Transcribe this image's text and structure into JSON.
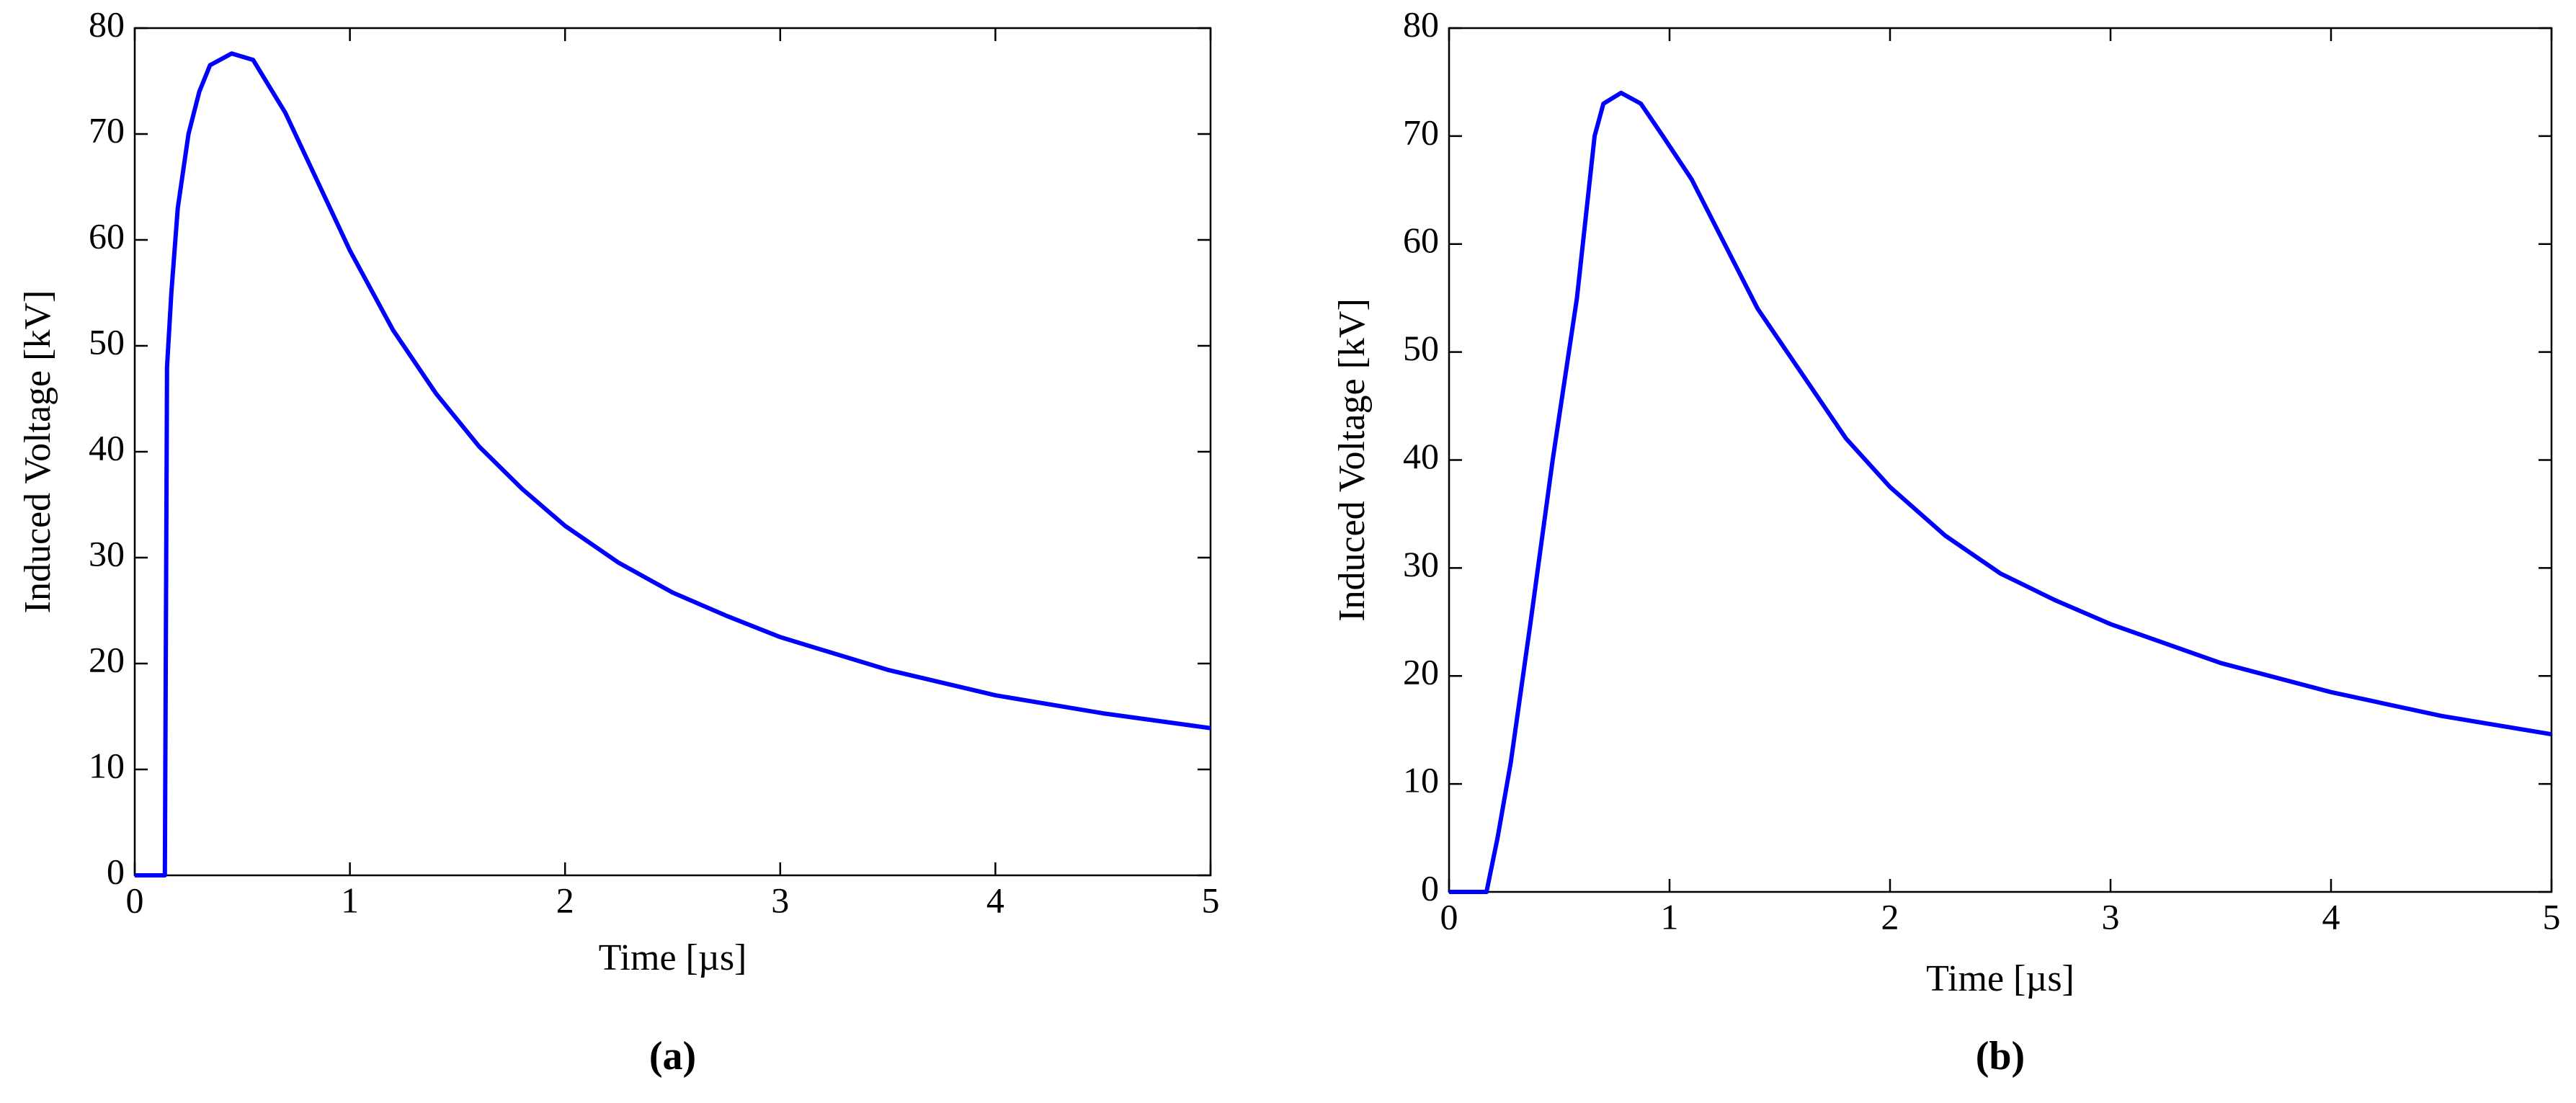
{
  "chart_data": [
    {
      "type": "line",
      "caption": "(a)",
      "x_label": "Time [µs]",
      "y_label": "Induced Voltage [kV]",
      "xlim": [
        0,
        5
      ],
      "ylim": [
        0,
        80
      ],
      "xticks": [
        0,
        1,
        2,
        3,
        4,
        5
      ],
      "yticks": [
        0,
        10,
        20,
        30,
        40,
        50,
        60,
        70,
        80
      ],
      "series": [
        {
          "color": "#0000ff",
          "x": [
            0,
            0.14,
            0.15,
            0.17,
            0.2,
            0.25,
            0.3,
            0.35,
            0.45,
            0.55,
            0.7,
            0.85,
            1,
            1.2,
            1.4,
            1.6,
            1.8,
            2,
            2.25,
            2.5,
            2.75,
            3,
            3.5,
            4,
            4.5,
            5
          ],
          "values": [
            0,
            0,
            48,
            55,
            63,
            70,
            74,
            76.5,
            77.6,
            77,
            72,
            65.5,
            59,
            51.5,
            45.5,
            40.5,
            36.5,
            33,
            29.5,
            26.7,
            24.5,
            22.5,
            19.4,
            17,
            15.3,
            13.9
          ]
        }
      ]
    },
    {
      "type": "line",
      "caption": "(b)",
      "x_label": "Time [µs]",
      "y_label": "Induced Voltage [kV]",
      "xlim": [
        0,
        5
      ],
      "ylim": [
        0,
        80
      ],
      "xticks": [
        0,
        1,
        2,
        3,
        4,
        5
      ],
      "yticks": [
        0,
        10,
        20,
        30,
        40,
        50,
        60,
        70,
        80
      ],
      "series": [
        {
          "color": "#0000ff",
          "x": [
            0,
            0.17,
            0.22,
            0.28,
            0.37,
            0.47,
            0.58,
            0.66,
            0.7,
            0.78,
            0.87,
            0.97,
            1.1,
            1.25,
            1.4,
            1.6,
            1.8,
            2,
            2.25,
            2.5,
            2.75,
            3,
            3.5,
            4,
            4.5,
            5
          ],
          "values": [
            0,
            0,
            5,
            12,
            25,
            40,
            55,
            70,
            73,
            74,
            73,
            70,
            66,
            60,
            54,
            48,
            42,
            37.5,
            33,
            29.5,
            27,
            24.8,
            21.2,
            18.5,
            16.3,
            14.6
          ]
        }
      ]
    }
  ]
}
